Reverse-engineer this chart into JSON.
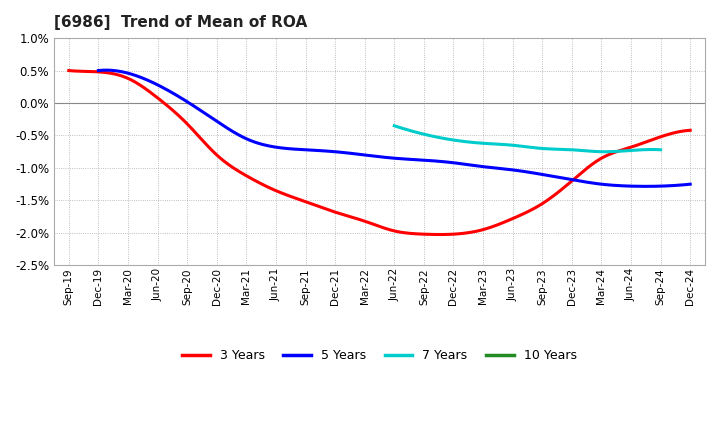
{
  "title": "[6986]  Trend of Mean of ROA",
  "title_fontsize": 11,
  "background_color": "#ffffff",
  "plot_bg_color": "#ffffff",
  "ylim": [
    -2.5,
    1.0
  ],
  "yticks": [
    -2.5,
    -2.0,
    -1.5,
    -1.0,
    -0.5,
    0.0,
    0.5,
    1.0
  ],
  "x_labels": [
    "Sep-19",
    "Dec-19",
    "Mar-20",
    "Jun-20",
    "Sep-20",
    "Dec-20",
    "Mar-21",
    "Jun-21",
    "Sep-21",
    "Dec-21",
    "Mar-22",
    "Jun-22",
    "Sep-22",
    "Dec-22",
    "Mar-23",
    "Jun-23",
    "Sep-23",
    "Dec-23",
    "Mar-24",
    "Jun-24",
    "Sep-24",
    "Dec-24"
  ],
  "series": {
    "3 Years": {
      "color": "#ff0000",
      "data": [
        0.5,
        0.48,
        0.38,
        0.08,
        -0.32,
        -0.8,
        -1.12,
        -1.35,
        -1.52,
        -1.68,
        -1.82,
        -1.97,
        -2.02,
        -2.02,
        -1.95,
        -1.78,
        -1.55,
        -1.2,
        -0.85,
        -0.68,
        -0.52,
        -0.42
      ]
    },
    "5 Years": {
      "color": "#0000ff",
      "data": [
        null,
        0.5,
        0.46,
        0.28,
        0.02,
        -0.28,
        -0.55,
        -0.68,
        -0.72,
        -0.75,
        -0.8,
        -0.85,
        -0.88,
        -0.92,
        -0.98,
        -1.03,
        -1.1,
        -1.18,
        -1.25,
        -1.28,
        -1.28,
        -1.25
      ]
    },
    "7 Years": {
      "color": "#00cccc",
      "data": [
        null,
        null,
        null,
        null,
        null,
        null,
        null,
        null,
        null,
        null,
        null,
        -0.35,
        -0.48,
        -0.57,
        -0.62,
        -0.65,
        -0.7,
        -0.72,
        -0.75,
        -0.73,
        -0.72,
        null
      ]
    },
    "10 Years": {
      "color": "#228b22",
      "data": [
        null,
        null,
        null,
        null,
        null,
        null,
        null,
        null,
        null,
        null,
        null,
        null,
        null,
        null,
        null,
        null,
        null,
        null,
        null,
        null,
        null,
        null
      ]
    }
  },
  "legend_items": [
    "3 Years",
    "5 Years",
    "7 Years",
    "10 Years"
  ],
  "legend_colors": [
    "#ff0000",
    "#0000ff",
    "#00cccc",
    "#228b22"
  ]
}
